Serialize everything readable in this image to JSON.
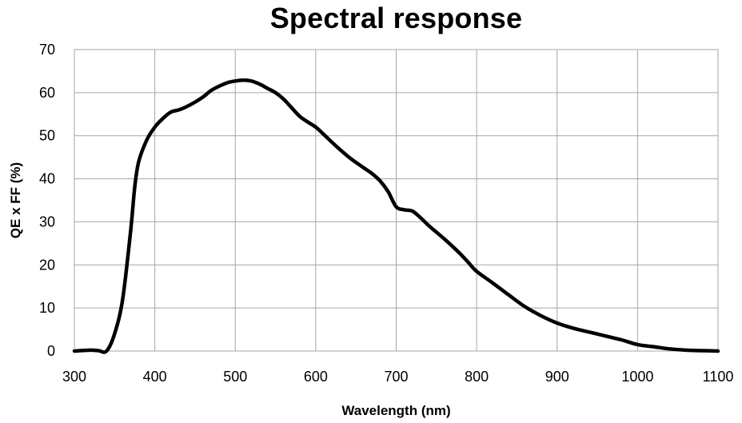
{
  "chart_data": {
    "type": "line",
    "title": "Spectral response",
    "xlabel": "Wavelength (nm)",
    "ylabel": "QE x FF (%)",
    "xlim": [
      300,
      1100
    ],
    "ylim": [
      0,
      70
    ],
    "x_ticks": [
      300,
      400,
      500,
      600,
      700,
      800,
      900,
      1000,
      1100
    ],
    "y_ticks": [
      0,
      10,
      20,
      30,
      40,
      50,
      60,
      70
    ],
    "grid": true,
    "legend": "none",
    "colors": {
      "line": "#000000",
      "grid": "#a6a6a6",
      "frame": "#a6a6a6"
    },
    "series": [
      {
        "x": [
          300,
          320,
          330,
          340,
          350,
          360,
          370,
          375,
          380,
          390,
          400,
          410,
          420,
          430,
          440,
          450,
          460,
          470,
          480,
          490,
          500,
          510,
          520,
          530,
          540,
          550,
          560,
          570,
          580,
          590,
          600,
          610,
          620,
          630,
          640,
          650,
          660,
          670,
          680,
          690,
          700,
          710,
          720,
          730,
          740,
          750,
          760,
          770,
          780,
          790,
          800,
          820,
          840,
          860,
          880,
          900,
          920,
          940,
          960,
          980,
          1000,
          1020,
          1040,
          1060,
          1080,
          1100
        ],
        "values": [
          0,
          0.2,
          0.1,
          0,
          4,
          12,
          28,
          38,
          44,
          49,
          52,
          54,
          55.5,
          56,
          56.8,
          57.8,
          59,
          60.5,
          61.5,
          62.3,
          62.7,
          62.9,
          62.7,
          62,
          61,
          60,
          58.5,
          56.5,
          54.5,
          53.2,
          52,
          50.3,
          48.5,
          46.8,
          45.2,
          43.8,
          42.5,
          41.2,
          39.5,
          37,
          33.5,
          32.8,
          32.5,
          31,
          29.2,
          27.6,
          26,
          24.3,
          22.5,
          20.5,
          18.5,
          15.8,
          13,
          10.3,
          8.2,
          6.5,
          5.3,
          4.4,
          3.5,
          2.6,
          1.5,
          1.0,
          0.5,
          0.2,
          0.1,
          0
        ]
      }
    ]
  }
}
